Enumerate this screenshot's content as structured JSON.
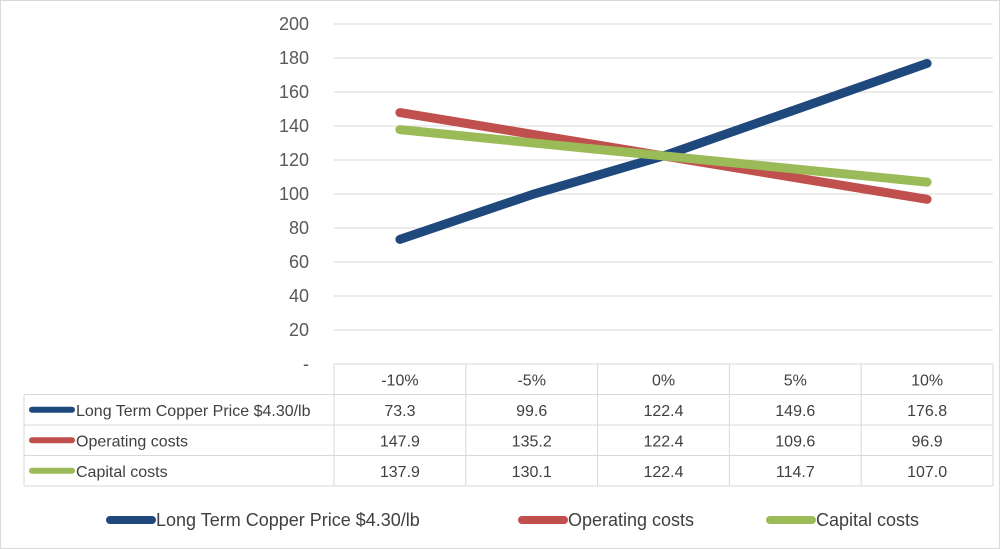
{
  "chart_data": {
    "type": "line",
    "title": "",
    "xlabel": "",
    "ylabel": "",
    "categories": [
      "-10%",
      "-5%",
      "0%",
      "5%",
      "10%"
    ],
    "ylim": [
      0,
      200
    ],
    "yticks": [
      0,
      20,
      40,
      60,
      80,
      100,
      120,
      140,
      160,
      180,
      200
    ],
    "ytick_labels": [
      "-",
      "20",
      "40",
      "60",
      "80",
      "100",
      "120",
      "140",
      "160",
      "180",
      "200"
    ],
    "grid": true,
    "legend_position": "bottom",
    "data_table": true,
    "series": [
      {
        "name": "Long Term Copper Price $4.30/lb",
        "color": "#1F497D",
        "values": [
          73.3,
          99.6,
          122.4,
          149.6,
          176.8
        ],
        "labels": [
          "73.3",
          "99.6",
          "122.4",
          "149.6",
          "176.8"
        ]
      },
      {
        "name": "Operating costs",
        "color": "#C0504D",
        "values": [
          147.9,
          135.2,
          122.4,
          109.6,
          96.9
        ],
        "labels": [
          "147.9",
          "135.2",
          "122.4",
          "109.6",
          "96.9"
        ]
      },
      {
        "name": "Capital costs",
        "color": "#9BBB59",
        "values": [
          137.9,
          130.1,
          122.4,
          114.7,
          107.0
        ],
        "labels": [
          "137.9",
          "130.1",
          "122.4",
          "114.7",
          "107.0"
        ]
      }
    ]
  }
}
